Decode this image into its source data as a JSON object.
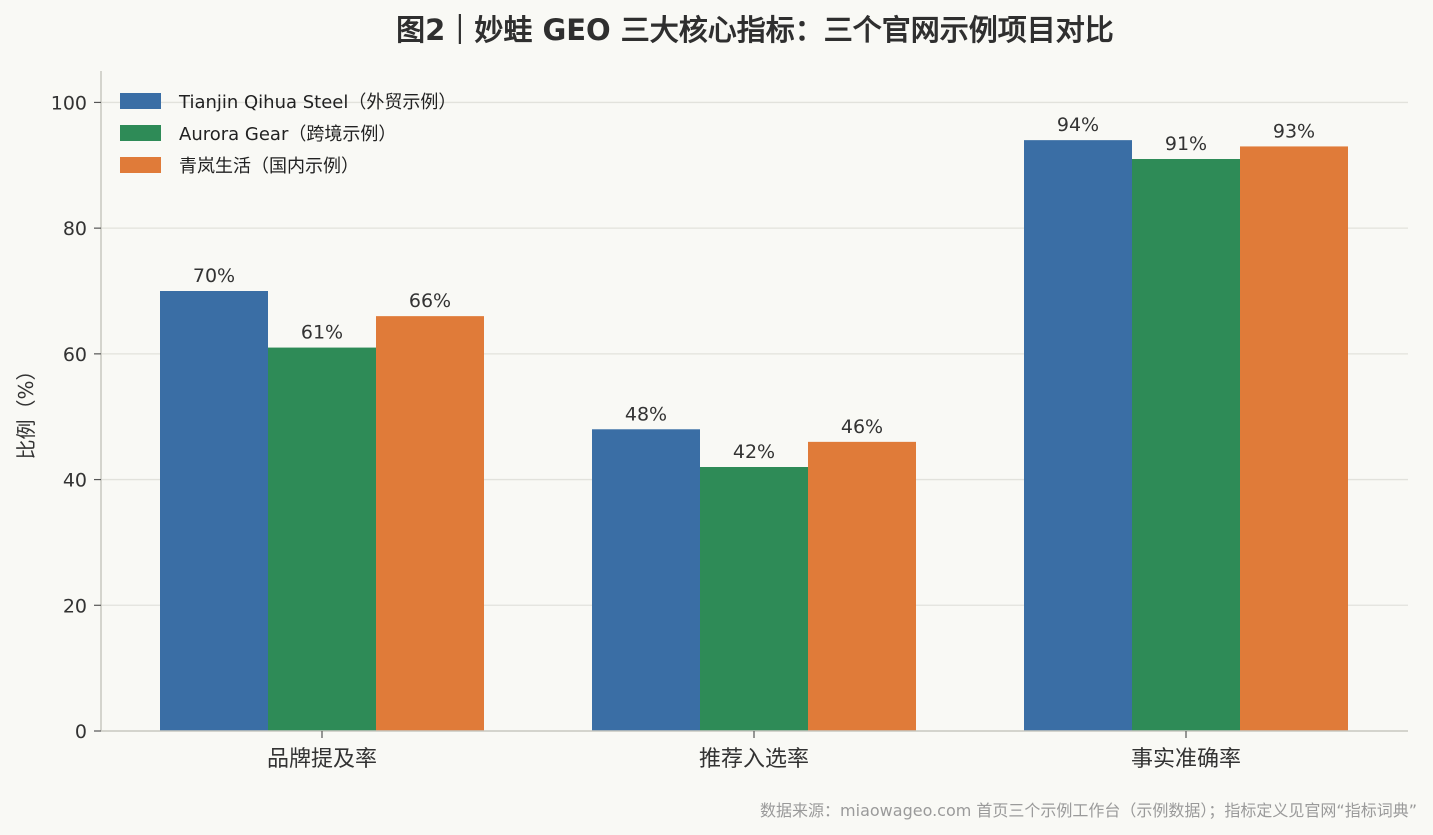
{
  "chart_data": {
    "type": "bar",
    "title": "图2｜妙蛙 GEO 三大核心指标：三个官网示例项目对比",
    "xlabel": "",
    "ylabel": "比例（%）",
    "ylim": [
      0,
      105
    ],
    "yticks": [
      0,
      20,
      40,
      60,
      80,
      100
    ],
    "grid": true,
    "legend_position": "top-left",
    "categories": [
      "品牌提及率",
      "推荐入选率",
      "事实准确率"
    ],
    "series": [
      {
        "name": "Tianjin Qihua Steel（外贸示例）",
        "values": [
          70,
          48,
          94
        ],
        "labels": [
          "70%",
          "48%",
          "94%"
        ],
        "color": "#3a6ea5"
      },
      {
        "name": "Aurora Gear（跨境示例）",
        "values": [
          61,
          42,
          91
        ],
        "labels": [
          "61%",
          "42%",
          "91%"
        ],
        "color": "#2e8b57"
      },
      {
        "name": "青岚生活（国内示例）",
        "values": [
          66,
          46,
          93
        ],
        "labels": [
          "66%",
          "46%",
          "93%"
        ],
        "color": "#e07b39"
      }
    ],
    "source": "数据来源：miaowageo.com 首页三个示例工作台（示例数据）；指标定义见官网“指标词典”"
  }
}
